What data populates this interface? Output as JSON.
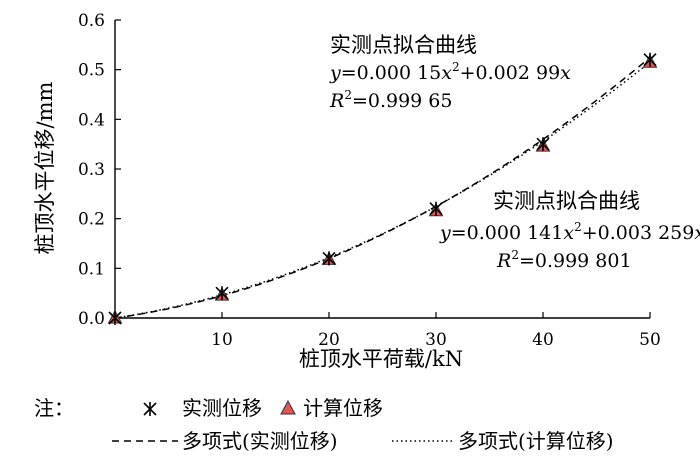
{
  "chart_data": {
    "type": "scatter",
    "xlabel": "桩顶水平荷载/kN",
    "ylabel": "桩顶水平位移/mm",
    "xlim": [
      0,
      50
    ],
    "ylim": [
      0,
      0.6
    ],
    "x_ticks": [
      "10",
      "20",
      "30",
      "40",
      "50"
    ],
    "y_ticks": [
      "0.0",
      "0.1",
      "0.2",
      "0.3",
      "0.4",
      "0.5",
      "0.6"
    ],
    "grid": false,
    "series": [
      {
        "name": "实测位移",
        "marker": "asterisk",
        "x": [
          0,
          10,
          20,
          30,
          40,
          50
        ],
        "y": [
          0,
          0.05,
          0.12,
          0.22,
          0.35,
          0.52
        ]
      },
      {
        "name": "计算位移",
        "marker": "triangle",
        "color": "#e05555",
        "x": [
          0,
          10,
          20,
          30,
          40,
          50
        ],
        "y": [
          0,
          0.046,
          0.118,
          0.216,
          0.346,
          0.515
        ]
      }
    ],
    "fits": [
      {
        "name": "多项式(实测位移)",
        "style": "dashed",
        "a": 0.00015,
        "b": 0.00299,
        "title": "实测点拟合曲线",
        "eq_y": "y",
        "eq_a": "=0.000 15",
        "eq_x1": "x",
        "eq_p2": "2",
        "eq_b": "+0.002 99",
        "eq_x2": "x",
        "r2_label": "R",
        "r2_p2": "2",
        "r2_value": "=0.999 65"
      },
      {
        "name": "多项式(计算位移)",
        "style": "dotted",
        "a": 0.000141,
        "b": 0.003259,
        "title": "实测点拟合曲线",
        "eq_y": "y",
        "eq_a": "=0.000 141",
        "eq_x1": "x",
        "eq_p2": "2",
        "eq_b": "+0.003 259",
        "eq_x2": "x",
        "r2_label": "R",
        "r2_p2": "2",
        "r2_value": "=0.999 801"
      }
    ],
    "legend": {
      "note": "注：",
      "placement": "bottom"
    }
  }
}
